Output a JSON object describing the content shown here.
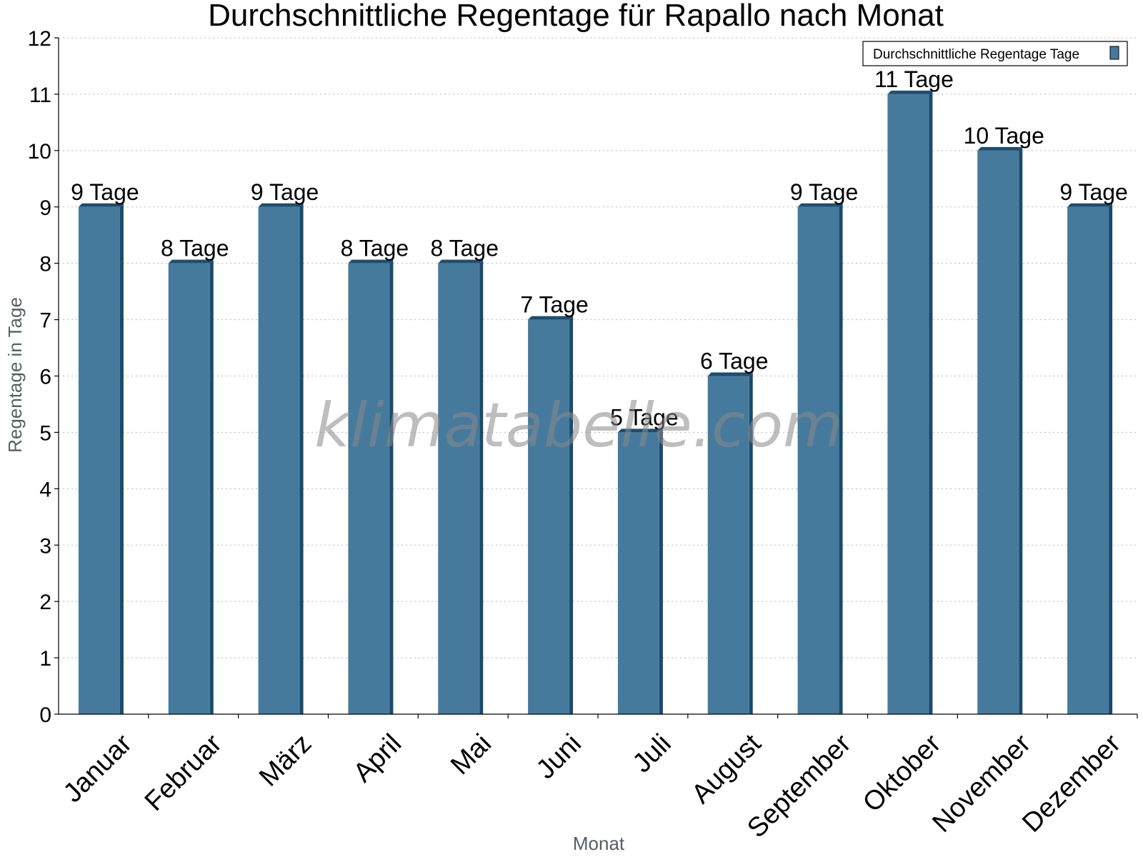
{
  "chart_data": {
    "type": "bar",
    "title": "Durchschnittliche Regentage für Rapallo nach Monat",
    "xlabel": "Monat",
    "ylabel": "Regentage in Tage",
    "categories": [
      "Januar",
      "Februar",
      "März",
      "April",
      "Mai",
      "Juni",
      "Juli",
      "August",
      "September",
      "Oktober",
      "November",
      "Dezember"
    ],
    "series": [
      {
        "name": "Durchschnittliche Regentage Tage",
        "values": [
          9,
          8,
          9,
          8,
          8,
          7,
          5,
          6,
          9,
          11,
          10,
          9
        ],
        "data_labels": [
          "9 Tage",
          "8 Tage",
          "9 Tage",
          "8 Tage",
          "8 Tage",
          "7 Tage",
          "5 Tage",
          "6 Tage",
          "9 Tage",
          "11 Tage",
          "10 Tage",
          "9 Tage"
        ]
      }
    ],
    "ylim": [
      0,
      12
    ],
    "yticks": [
      0,
      1,
      2,
      3,
      4,
      5,
      6,
      7,
      8,
      9,
      10,
      11,
      12
    ],
    "grid": true,
    "legend_position": "top-right",
    "colors": {
      "bar": "#467a9c",
      "bar_side": "#1a4a6a",
      "bar_top": "#1e4e6e",
      "legend_swatch": "#467a9c"
    }
  },
  "watermark": "klimatabelle.com"
}
